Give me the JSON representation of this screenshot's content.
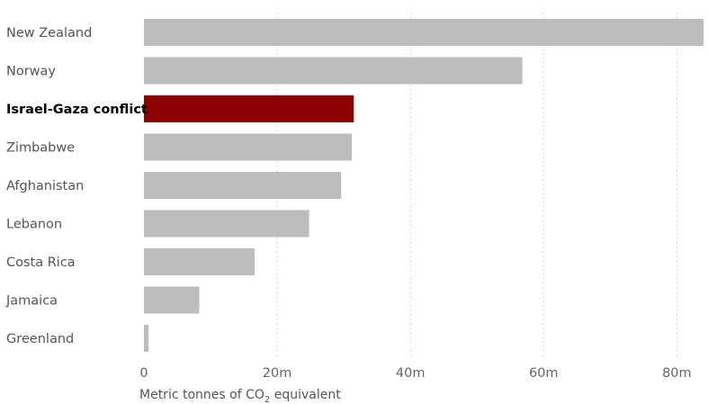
{
  "chart_data": {
    "type": "bar",
    "orientation": "horizontal",
    "categories": [
      "New Zealand",
      "Norway",
      "Israel-Gaza conflict",
      "Zimbabwe",
      "Afghanistan",
      "Lebanon",
      "Costa Rica",
      "Jamaica",
      "Greenland"
    ],
    "values": [
      84,
      56.8,
      31.5,
      31.2,
      29.6,
      24.8,
      16.6,
      8.3,
      0.7
    ],
    "highlight": "Israel-Gaza conflict",
    "xlim": [
      0,
      84
    ],
    "xticks": [
      0,
      20,
      40,
      60,
      80
    ],
    "xtick_labels": [
      "0",
      "20m",
      "40m",
      "60m",
      "80m"
    ],
    "xlabel_prefix": "Metric tonnes of CO",
    "xlabel_sub": "2",
    "xlabel_suffix": " equivalent",
    "colors": {
      "bar": "#bdbdbd",
      "highlight": "#8b0000"
    }
  }
}
